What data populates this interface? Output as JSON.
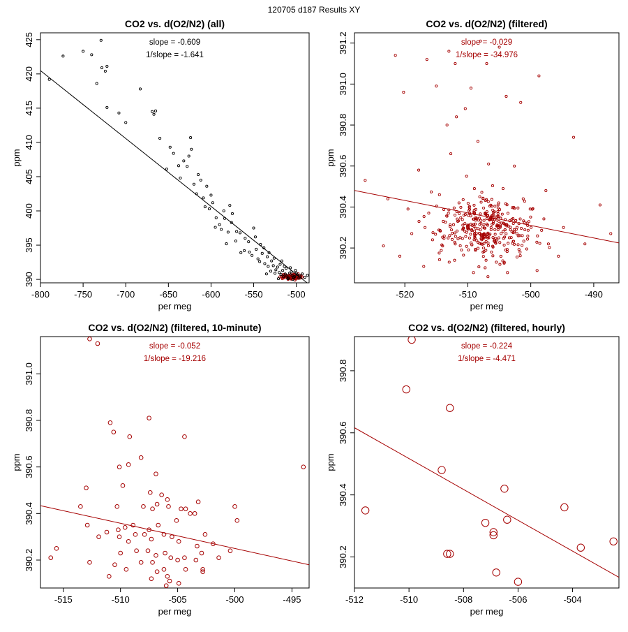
{
  "page_title": "120705   d187   Results XY",
  "colors": {
    "black": "#000000",
    "red": "#a50000",
    "axis": "#000000"
  },
  "chart_data": [
    {
      "type": "scatter",
      "title": "CO2 vs. d(O2/N2) (all)",
      "xlabel": "per meg",
      "ylabel": "ppm",
      "xlim": [
        -800,
        -485
      ],
      "ylim": [
        389.5,
        426
      ],
      "xticks": [
        -800,
        -750,
        -700,
        -650,
        -600,
        -550,
        -500
      ],
      "xtick_labels": [
        "-800",
        "-750",
        "-700",
        "-650",
        "-600",
        "-550",
        "-500"
      ],
      "yticks": [
        390,
        395,
        400,
        405,
        410,
        415,
        420,
        425
      ],
      "ytick_labels": [
        "390",
        "395",
        "400",
        "405",
        "410",
        "415",
        "420",
        "425"
      ],
      "annotations": [
        "slope = -0.609",
        "1/slope = -1.641"
      ],
      "annotation_color": "black",
      "regression": {
        "slope": -0.0991,
        "intercept": 341.2
      },
      "regression_color": "black",
      "marker_color": "black",
      "marker_size": "small",
      "points": [
        [
          -789.6,
          419.2
        ],
        [
          -773.5,
          422.6
        ],
        [
          -750,
          423.3
        ],
        [
          -740,
          422.8
        ],
        [
          -734,
          418.6
        ],
        [
          -729,
          424.9
        ],
        [
          -728,
          420.9
        ],
        [
          -722,
          421.1
        ],
        [
          -724,
          420.4
        ],
        [
          -722,
          415.1
        ],
        [
          -708,
          414.3
        ],
        [
          -700,
          412.9
        ],
        [
          -683,
          417.8
        ],
        [
          -669,
          414.5
        ],
        [
          -667,
          414.1
        ],
        [
          -665,
          414.6
        ],
        [
          -660,
          410.6
        ],
        [
          -652,
          406.1
        ],
        [
          -648,
          409.3
        ],
        [
          -644,
          408.4
        ],
        [
          -638,
          406.6
        ],
        [
          -636,
          404.8
        ],
        [
          -632,
          407.3
        ],
        [
          -628,
          406.5
        ],
        [
          -626,
          408.0
        ],
        [
          -624,
          410.7
        ],
        [
          -623,
          409.0
        ],
        [
          -617,
          402.5
        ],
        [
          -612,
          404.5
        ],
        [
          -609,
          401.9
        ],
        [
          -605,
          403.6
        ],
        [
          -602,
          400.3
        ],
        [
          -598,
          401.2
        ],
        [
          -594,
          399.0
        ],
        [
          -588,
          397.3
        ],
        [
          -584,
          398.9
        ],
        [
          -580,
          396.9
        ],
        [
          -576,
          398.3
        ],
        [
          -571,
          395.6
        ],
        [
          -566,
          396.8
        ],
        [
          -561,
          394.2
        ],
        [
          -556,
          395.5
        ],
        [
          -552,
          393.5
        ],
        [
          -547,
          394.4
        ],
        [
          -543,
          392.6
        ],
        [
          -540,
          393.8
        ],
        [
          -537,
          392.3
        ],
        [
          -533,
          391.9
        ],
        [
          -530,
          391.2
        ],
        [
          -527,
          392.0
        ],
        [
          -524,
          391.4
        ],
        [
          -520,
          391.0
        ],
        [
          -518,
          390.7
        ],
        [
          -516,
          391.3
        ],
        [
          -513,
          390.8
        ],
        [
          -511,
          390.5
        ],
        [
          -508,
          390.9
        ],
        [
          -505,
          390.6
        ],
        [
          -502,
          390.4
        ],
        [
          -499,
          390.7
        ],
        [
          -496,
          390.5
        ],
        [
          -493,
          390.8
        ],
        [
          -490,
          390.3
        ],
        [
          -487,
          390.6
        ],
        [
          -585,
          400.0
        ],
        [
          -590,
          398.0
        ],
        [
          -575,
          399.6
        ],
        [
          -570,
          397.0
        ],
        [
          -560,
          396.0
        ],
        [
          -555,
          394.0
        ],
        [
          -548,
          396.2
        ],
        [
          -545,
          393.0
        ],
        [
          -538,
          394.6
        ],
        [
          -534,
          393.3
        ],
        [
          -529,
          392.7
        ],
        [
          -525,
          390.9
        ],
        [
          -522,
          391.8
        ],
        [
          -519,
          392.2
        ],
        [
          -515,
          390.4
        ],
        [
          -512,
          391.6
        ],
        [
          -509,
          390.2
        ],
        [
          -506,
          391.1
        ],
        [
          -503,
          390.3
        ],
        [
          -500,
          390.9
        ],
        [
          -497,
          390.2
        ],
        [
          -620,
          403.9
        ],
        [
          -615,
          405.3
        ],
        [
          -607,
          400.6
        ],
        [
          -600,
          402.3
        ],
        [
          -595,
          397.6
        ],
        [
          -582,
          395.2
        ],
        [
          -578,
          400.8
        ],
        [
          -565,
          393.9
        ],
        [
          -550,
          397.5
        ],
        [
          -542,
          395.1
        ],
        [
          -535,
          390.8
        ],
        [
          -532,
          393.9
        ],
        [
          -526,
          393.1
        ],
        [
          -521,
          390.1
        ],
        [
          -517,
          392.7
        ],
        [
          -514,
          391.9
        ],
        [
          -510,
          390.1
        ],
        [
          -507,
          391.7
        ],
        [
          -504,
          390.0
        ],
        [
          -501,
          391.3
        ]
      ],
      "filtered_cluster": {
        "x_center": -507,
        "x_spread": 9,
        "y_center": 390.35,
        "y_spread": 0.3,
        "count": 120,
        "color": "red"
      }
    },
    {
      "type": "scatter",
      "title": "CO2 vs. d(O2/N2) (filtered)",
      "xlabel": "per meg",
      "ylabel": "ppm",
      "xlim": [
        -528,
        -486
      ],
      "ylim": [
        390.03,
        391.25
      ],
      "xticks": [
        -520,
        -510,
        -500,
        -490
      ],
      "xtick_labels": [
        "-520",
        "-510",
        "-500",
        "-490"
      ],
      "yticks": [
        390.2,
        390.4,
        390.6,
        390.8,
        391.0,
        391.2
      ],
      "ytick_labels": [
        "390.2",
        "390.4",
        "390.6",
        "390.8",
        "391.0",
        "391.2"
      ],
      "annotations": [
        "slope = -0.029",
        "1/slope = -34.976"
      ],
      "annotation_color": "red",
      "regression": {
        "slope": -0.0061,
        "intercept": 387.26
      },
      "regression_color": "red",
      "marker_color": "red",
      "marker_size": "small",
      "points": [
        [
          -521.5,
          391.14
        ],
        [
          -520.2,
          390.96
        ],
        [
          -516.5,
          391.12
        ],
        [
          -513,
          391.16
        ],
        [
          -512,
          391.1
        ],
        [
          -508,
          391.21
        ],
        [
          -505,
          391.18
        ],
        [
          -507,
          391.1
        ],
        [
          -498.7,
          391.04
        ],
        [
          -501.6,
          390.91
        ],
        [
          -515,
          390.99
        ],
        [
          -513.3,
          390.8
        ],
        [
          -510.4,
          390.88
        ],
        [
          -509.5,
          390.98
        ],
        [
          -503.9,
          390.94
        ],
        [
          -511.8,
          390.84
        ],
        [
          -493.2,
          390.74
        ],
        [
          -526.3,
          390.53
        ],
        [
          -522.7,
          390.44
        ],
        [
          -517.8,
          390.58
        ],
        [
          -516.2,
          390.37
        ],
        [
          -514.5,
          390.46
        ],
        [
          -512.7,
          390.66
        ],
        [
          -510.2,
          390.55
        ],
        [
          -508.4,
          390.72
        ],
        [
          -506.7,
          390.61
        ],
        [
          -504.4,
          390.49
        ],
        [
          -502.6,
          390.6
        ],
        [
          -500.1,
          390.39
        ],
        [
          -497.6,
          390.48
        ],
        [
          -494.8,
          390.3
        ],
        [
          -491.4,
          390.22
        ],
        [
          -489.0,
          390.41
        ],
        [
          -487.3,
          390.27
        ],
        [
          -523.4,
          390.21
        ],
        [
          -520.8,
          390.16
        ],
        [
          -518.9,
          390.27
        ],
        [
          -517.0,
          390.11
        ],
        [
          -515.6,
          390.24
        ],
        [
          -513.9,
          390.33
        ],
        [
          -512.1,
          390.14
        ],
        [
          -510.8,
          390.29
        ],
        [
          -509.1,
          390.08
        ],
        [
          -507.5,
          390.2
        ],
        [
          -506.0,
          390.35
        ],
        [
          -504.9,
          390.12
        ],
        [
          -503.4,
          390.25
        ],
        [
          -501.7,
          390.18
        ],
        [
          -500.5,
          390.31
        ],
        [
          -499.0,
          390.09
        ],
        [
          -497.2,
          390.22
        ],
        [
          -495.6,
          390.16
        ],
        [
          -511.4,
          390.42
        ],
        [
          -509.7,
          390.37
        ],
        [
          -508.1,
          390.45
        ],
        [
          -506.3,
          390.3
        ],
        [
          -505.2,
          390.41
        ],
        [
          -503.0,
          390.34
        ],
        [
          -501.2,
          390.44
        ],
        [
          -514.0,
          390.21
        ],
        [
          -508.9,
          390.26
        ],
        [
          -507.1,
          390.14
        ],
        [
          -505.7,
          390.23
        ],
        [
          -504.0,
          390.19
        ],
        [
          -502.2,
          390.27
        ],
        [
          -519.5,
          390.39
        ],
        [
          -516.8,
          390.3
        ],
        [
          -511.0,
          390.19
        ],
        [
          -506.8,
          390.06
        ],
        [
          -503.7,
          390.08
        ]
      ],
      "dense_cluster": {
        "x_center": -507,
        "x_spread": 6,
        "y_center": 390.3,
        "y_spread": 0.12,
        "count": 330,
        "color": "red"
      }
    },
    {
      "type": "scatter",
      "title": "CO2 vs. d(O2/N2) (filtered, 10-minute)",
      "xlabel": "per meg",
      "ylabel": "ppm",
      "xlim": [
        -517,
        -493.5
      ],
      "ylim": [
        390.08,
        391.16
      ],
      "xticks": [
        -515,
        -510,
        -505,
        -500,
        -495
      ],
      "xtick_labels": [
        "-515",
        "-510",
        "-505",
        "-500",
        "-495"
      ],
      "yticks": [
        390.2,
        390.4,
        390.6,
        390.8,
        391.0
      ],
      "ytick_labels": [
        "390.2",
        "390.4",
        "390.6",
        "390.8",
        "391.0"
      ],
      "annotations": [
        "slope = -0.052",
        "1/slope = -19.216"
      ],
      "annotation_color": "red",
      "regression": {
        "slope": -0.0108,
        "intercept": 384.85
      },
      "regression_color": "red",
      "marker_color": "red",
      "marker_size": "medium",
      "points": [
        [
          -512.7,
          391.15
        ],
        [
          -512.0,
          391.13
        ],
        [
          -510.9,
          390.79
        ],
        [
          -510.6,
          390.75
        ],
        [
          -509.2,
          390.73
        ],
        [
          -507.5,
          390.81
        ],
        [
          -504.4,
          390.73
        ],
        [
          -508.2,
          390.64
        ],
        [
          -510.1,
          390.6
        ],
        [
          -509.3,
          390.61
        ],
        [
          -506.9,
          390.57
        ],
        [
          -494.0,
          390.6
        ],
        [
          -509.8,
          390.52
        ],
        [
          -513.0,
          390.51
        ],
        [
          -507.4,
          390.49
        ],
        [
          -506.4,
          390.48
        ],
        [
          -505.9,
          390.46
        ],
        [
          -506.8,
          390.44
        ],
        [
          -505.8,
          390.43
        ],
        [
          -504.7,
          390.42
        ],
        [
          -504.3,
          390.42
        ],
        [
          -503.5,
          390.4
        ],
        [
          -503.2,
          390.45
        ],
        [
          -503.9,
          390.4
        ],
        [
          -500.0,
          390.43
        ],
        [
          -513.5,
          390.43
        ],
        [
          -510.3,
          390.43
        ],
        [
          -508.0,
          390.43
        ],
        [
          -507.2,
          390.42
        ],
        [
          -499.8,
          390.37
        ],
        [
          -505.1,
          390.37
        ],
        [
          -506.7,
          390.35
        ],
        [
          -507.5,
          390.33
        ],
        [
          -508.9,
          390.35
        ],
        [
          -509.6,
          390.34
        ],
        [
          -510.2,
          390.33
        ],
        [
          -512.9,
          390.35
        ],
        [
          -511.2,
          390.32
        ],
        [
          -510.1,
          390.3
        ],
        [
          -508.7,
          390.31
        ],
        [
          -507.9,
          390.31
        ],
        [
          -506.2,
          390.31
        ],
        [
          -505.5,
          390.3
        ],
        [
          -502.6,
          390.31
        ],
        [
          -501.9,
          390.27
        ],
        [
          -504.9,
          390.28
        ],
        [
          -503.3,
          390.26
        ],
        [
          -507.3,
          390.29
        ],
        [
          -509.3,
          390.28
        ],
        [
          -510.0,
          390.23
        ],
        [
          -511.9,
          390.3
        ],
        [
          -515.6,
          390.25
        ],
        [
          -516.1,
          390.21
        ],
        [
          -508.6,
          390.24
        ],
        [
          -507.6,
          390.24
        ],
        [
          -506.9,
          390.22
        ],
        [
          -506.1,
          390.23
        ],
        [
          -505.6,
          390.21
        ],
        [
          -504.4,
          390.21
        ],
        [
          -502.9,
          390.23
        ],
        [
          -500.4,
          390.24
        ],
        [
          -501.4,
          390.21
        ],
        [
          -503.4,
          390.2
        ],
        [
          -505.0,
          390.2
        ],
        [
          -507.2,
          390.19
        ],
        [
          -508.2,
          390.19
        ],
        [
          -509.5,
          390.16
        ],
        [
          -510.5,
          390.18
        ],
        [
          -512.7,
          390.19
        ],
        [
          -511.0,
          390.13
        ],
        [
          -506.2,
          390.16
        ],
        [
          -505.9,
          390.13
        ],
        [
          -507.3,
          390.12
        ],
        [
          -506.8,
          390.15
        ],
        [
          -504.3,
          390.16
        ],
        [
          -502.8,
          390.15
        ],
        [
          -502.8,
          390.16
        ],
        [
          -505.7,
          390.11
        ],
        [
          -506.0,
          390.09
        ],
        [
          -504.9,
          390.1
        ]
      ]
    },
    {
      "type": "scatter",
      "title": "CO2 vs. d(O2/N2) (filtered, hourly)",
      "xlabel": "per meg",
      "ylabel": "ppm",
      "xlim": [
        -512,
        -502.3
      ],
      "ylim": [
        390.1,
        390.91
      ],
      "xticks": [
        -512,
        -510,
        -508,
        -506,
        -504
      ],
      "xtick_labels": [
        "-512",
        "-510",
        "-508",
        "-506",
        "-504"
      ],
      "yticks": [
        390.2,
        390.4,
        390.6,
        390.8
      ],
      "ytick_labels": [
        "390.2",
        "390.4",
        "390.6",
        "390.8"
      ],
      "annotations": [
        "slope = -0.224",
        "1/slope = -4.471"
      ],
      "annotation_color": "red",
      "regression": {
        "slope": -0.0497,
        "intercept": 365.17
      },
      "regression_color": "red",
      "marker_color": "red",
      "marker_size": "large",
      "points": [
        [
          -509.9,
          390.9
        ],
        [
          -510.1,
          390.74
        ],
        [
          -508.5,
          390.68
        ],
        [
          -508.8,
          390.48
        ],
        [
          -511.6,
          390.35
        ],
        [
          -506.5,
          390.42
        ],
        [
          -507.2,
          390.31
        ],
        [
          -506.9,
          390.28
        ],
        [
          -506.9,
          390.27
        ],
        [
          -506.4,
          390.32
        ],
        [
          -504.3,
          390.36
        ],
        [
          -503.7,
          390.23
        ],
        [
          -502.5,
          390.25
        ],
        [
          -508.6,
          390.21
        ],
        [
          -508.5,
          390.21
        ],
        [
          -506.8,
          390.15
        ],
        [
          -506.0,
          390.12
        ]
      ]
    }
  ]
}
